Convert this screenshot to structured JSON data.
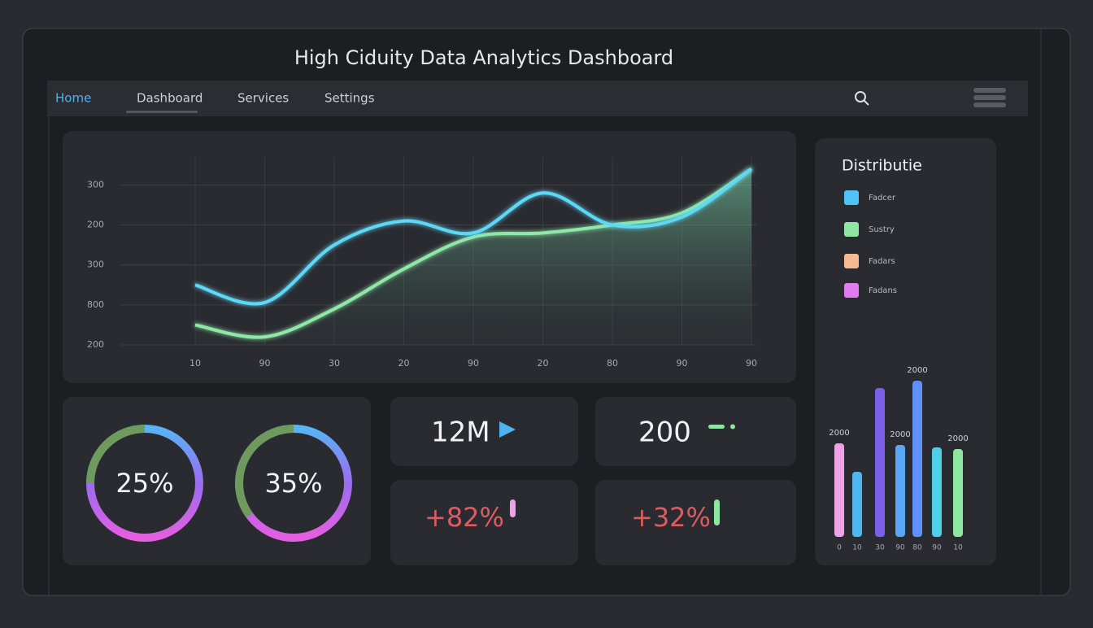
{
  "title": "High Ciduity Data Analytics Dashboard",
  "nav": [
    "Home",
    "Dashboard",
    "Services",
    "Settings"
  ],
  "line_chart": {
    "type": "line",
    "categories": [
      "10",
      "90",
      "30",
      "20",
      "90",
      "20",
      "80",
      "90",
      "90"
    ],
    "ylim": [
      0,
      4.7
    ],
    "yticks": [
      {
        "value": 0,
        "label": "200"
      },
      {
        "value": 1,
        "label": "800"
      },
      {
        "value": 2,
        "label": "300"
      },
      {
        "value": 3,
        "label": "200"
      },
      {
        "value": 4,
        "label": "300"
      }
    ],
    "grid": true,
    "series": [
      {
        "color": "#5fd8f5",
        "values": [
          1.5,
          1.06,
          2.5,
          3.1,
          2.8,
          3.8,
          3.0,
          3.2,
          4.4
        ]
      },
      {
        "color": "#8fe8a8",
        "values": [
          0.5,
          0.2,
          0.9,
          1.9,
          2.7,
          2.8,
          3.0,
          3.3,
          4.4
        ]
      }
    ]
  },
  "donuts": [
    {
      "value": 25,
      "label": "25%"
    },
    {
      "value": 35,
      "label": "35%"
    }
  ],
  "stats": [
    "12M",
    "200",
    "+82%",
    "+32%"
  ],
  "distribution": {
    "type": "bar",
    "title": "Distributie",
    "legend": [
      {
        "name": "Fadcer",
        "color": "#4fc3f7"
      },
      {
        "name": "Sustry",
        "color": "#8ee6a0"
      },
      {
        "name": "Fadars",
        "color": "#f7b98f"
      },
      {
        "name": "Fadans",
        "color": "#e27bef"
      }
    ],
    "categories": [
      "0",
      "10",
      "30",
      "90",
      "80",
      "90",
      "10"
    ],
    "values": [
      115,
      80,
      183,
      113,
      192,
      110,
      108
    ],
    "colors": [
      "#f0a0e6",
      "#4fb6f0",
      "#7b5fe8",
      "#5aa8f5",
      "#5f8ff7",
      "#4fd0e8",
      "#8ee6a0"
    ],
    "ylim": [
      0,
      200
    ],
    "annotations": [
      "2000",
      "2000",
      "2000",
      "2000"
    ]
  }
}
